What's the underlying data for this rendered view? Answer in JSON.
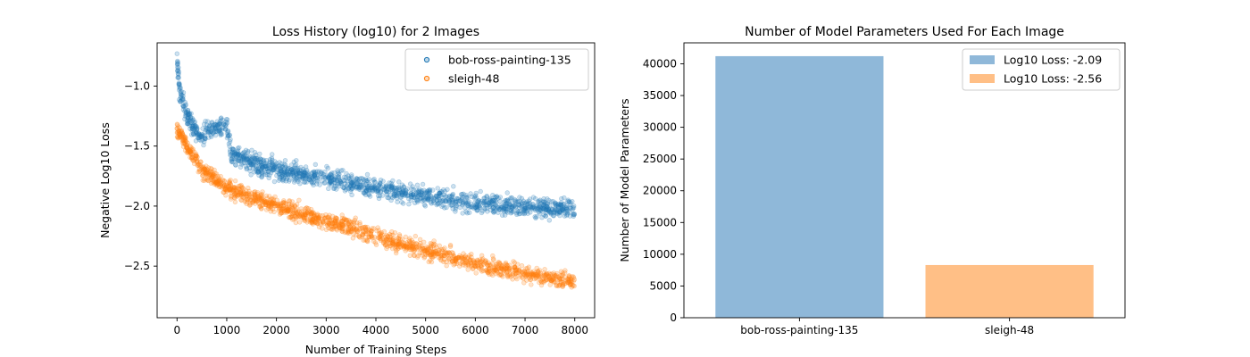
{
  "chart_data": [
    {
      "type": "scatter",
      "title": "Loss History (log10) for 2 Images",
      "xlabel": "Number of Training Steps",
      "ylabel": "Negative Log10 Loss",
      "xlim": [
        -400,
        8400
      ],
      "ylim": [
        -2.93,
        -0.64
      ],
      "xticks": [
        0,
        1000,
        2000,
        3000,
        4000,
        5000,
        6000,
        7000,
        8000
      ],
      "yticks": [
        -2.5,
        -2.0,
        -1.5,
        -1.0
      ],
      "ytick_labels": [
        "−2.5",
        "−2.0",
        "−1.5",
        "−1.0"
      ],
      "legend": "top-right",
      "series": [
        {
          "name": "bob-ross-painting-135",
          "color": "#1f77b4",
          "trend": [
            [
              0,
              -0.75
            ],
            [
              50,
              -1.05
            ],
            [
              200,
              -1.25
            ],
            [
              350,
              -1.35
            ],
            [
              500,
              -1.45
            ],
            [
              600,
              -1.35
            ],
            [
              1000,
              -1.35
            ],
            [
              1100,
              -1.58
            ],
            [
              2000,
              -1.7
            ],
            [
              3000,
              -1.77
            ],
            [
              4000,
              -1.85
            ],
            [
              5000,
              -1.92
            ],
            [
              6000,
              -1.97
            ],
            [
              7000,
              -2.0
            ],
            [
              8000,
              -2.03
            ]
          ],
          "spread": 0.07
        },
        {
          "name": "sleigh-48",
          "color": "#ff7f0e",
          "trend": [
            [
              0,
              -1.35
            ],
            [
              200,
              -1.5
            ],
            [
              500,
              -1.7
            ],
            [
              1000,
              -1.85
            ],
            [
              2000,
              -2.0
            ],
            [
              3000,
              -2.12
            ],
            [
              4000,
              -2.25
            ],
            [
              5000,
              -2.37
            ],
            [
              6000,
              -2.48
            ],
            [
              7000,
              -2.56
            ],
            [
              8000,
              -2.63
            ]
          ],
          "spread": 0.06
        }
      ]
    },
    {
      "type": "bar",
      "title": "Number of Model Parameters Used For Each Image",
      "xlabel": "",
      "ylabel": "Number of Model Parameters",
      "categories": [
        "bob-ross-painting-135",
        "sleigh-48"
      ],
      "values": [
        41200,
        8300
      ],
      "colors": [
        "#8fb8d9",
        "#ffbf86"
      ],
      "ylim": [
        0,
        43300
      ],
      "yticks": [
        0,
        5000,
        10000,
        15000,
        20000,
        25000,
        30000,
        35000,
        40000
      ],
      "legend": "top-right",
      "legend_entries": [
        "Log10 Loss: -2.09",
        "Log10 Loss: -2.56"
      ]
    }
  ]
}
